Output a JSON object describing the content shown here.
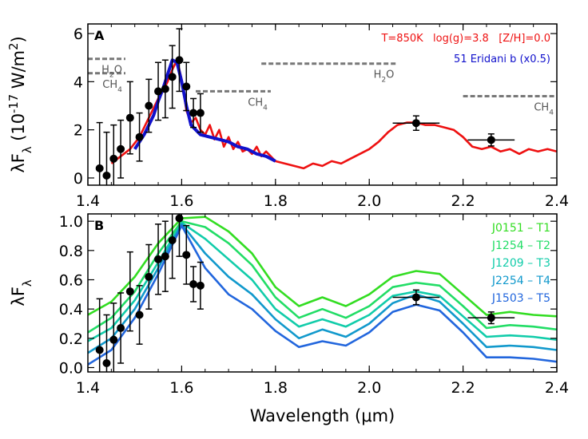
{
  "chart_data": [
    {
      "panel": "A",
      "type": "line",
      "xlabel": "",
      "ylabel": "λF_λ (10^-17 W/m^2)",
      "xlim": [
        1.4,
        2.4
      ],
      "ylim": [
        -0.3,
        6.4
      ],
      "xticks": [
        1.4,
        1.6,
        1.8,
        2.0,
        2.2,
        2.4
      ],
      "yticks": [
        0,
        2,
        4,
        6
      ],
      "xtick_labels": [
        "1.4",
        "1.6",
        "1.8",
        "2.0",
        "2.2",
        "2.4"
      ],
      "ytick_labels": [
        "0",
        "2",
        "4",
        "6"
      ],
      "annotation_model": "T=850K   log(g)=3.8   [Z/H]=0.0",
      "annotation_target": "51 Eridani b (x0.5)",
      "series": [
        {
          "name": "T=850K   log(g)=3.8   [Z/H]=0.0",
          "color": "#ee1111",
          "x": [
            1.45,
            1.47,
            1.49,
            1.51,
            1.53,
            1.55,
            1.56,
            1.57,
            1.58,
            1.59,
            1.6,
            1.61,
            1.62,
            1.63,
            1.64,
            1.65,
            1.66,
            1.67,
            1.68,
            1.69,
            1.7,
            1.71,
            1.72,
            1.73,
            1.74,
            1.75,
            1.76,
            1.77,
            1.78,
            1.8,
            1.82,
            1.84,
            1.86,
            1.88,
            1.9,
            1.92,
            1.94,
            1.96,
            1.98,
            2.0,
            2.02,
            2.04,
            2.06,
            2.08,
            2.1,
            2.12,
            2.14,
            2.16,
            2.18,
            2.2,
            2.22,
            2.24,
            2.26,
            2.28,
            2.3,
            2.32,
            2.34,
            2.36,
            2.38,
            2.4
          ],
          "y": [
            0.6,
            0.9,
            1.2,
            1.7,
            2.5,
            3.3,
            3.6,
            4.0,
            4.5,
            4.9,
            4.1,
            2.8,
            2.3,
            2.5,
            2.0,
            1.8,
            2.2,
            1.6,
            2.0,
            1.3,
            1.7,
            1.2,
            1.5,
            1.1,
            1.2,
            1.0,
            1.3,
            0.9,
            1.1,
            0.7,
            0.6,
            0.5,
            0.4,
            0.6,
            0.5,
            0.7,
            0.6,
            0.8,
            1.0,
            1.2,
            1.5,
            1.9,
            2.2,
            2.3,
            2.3,
            2.2,
            2.2,
            2.1,
            2.0,
            1.7,
            1.3,
            1.2,
            1.3,
            1.1,
            1.2,
            1.0,
            1.2,
            1.1,
            1.2,
            1.1
          ]
        },
        {
          "name": "51 Eridani b (x0.5)",
          "color": "#1111cc",
          "x": [
            1.5,
            1.52,
            1.54,
            1.55,
            1.56,
            1.57,
            1.58,
            1.59,
            1.6,
            1.61,
            1.62,
            1.63,
            1.64,
            1.66,
            1.68,
            1.7,
            1.72,
            1.74,
            1.76,
            1.78,
            1.8
          ],
          "y": [
            1.2,
            1.8,
            2.6,
            3.2,
            3.7,
            4.3,
            4.9,
            4.8,
            4.0,
            3.0,
            2.2,
            2.0,
            1.8,
            1.7,
            1.6,
            1.5,
            1.3,
            1.2,
            1.0,
            0.9,
            0.7
          ]
        },
        {
          "name": "data",
          "type": "scatter",
          "color": "#000000",
          "x": [
            1.425,
            1.44,
            1.455,
            1.47,
            1.49,
            1.51,
            1.53,
            1.55,
            1.565,
            1.58,
            1.595,
            1.61,
            1.625,
            1.64
          ],
          "y": [
            0.4,
            0.1,
            0.8,
            1.2,
            2.5,
            1.7,
            3.0,
            3.6,
            3.7,
            4.2,
            4.9,
            3.8,
            2.7,
            2.7
          ],
          "err": [
            1.9,
            1.8,
            1.4,
            1.2,
            1.5,
            1.0,
            1.1,
            1.2,
            1.2,
            1.3,
            1.3,
            1.0,
            0.6,
            0.8
          ]
        },
        {
          "name": "photometry",
          "type": "scatter",
          "color": "#000000",
          "x": [
            2.1,
            2.26
          ],
          "y": [
            2.28,
            1.58
          ],
          "xerr": [
            0.05,
            0.05
          ],
          "err": [
            0.3,
            0.25
          ]
        }
      ],
      "molecule_labels": [
        {
          "text": "H2O",
          "x": 1.5,
          "y": 4.95,
          "bar": [
            1.4,
            1.48
          ]
        },
        {
          "text": "CH4",
          "x": 1.5,
          "y": 4.35,
          "bar": [
            1.4,
            1.48
          ]
        },
        {
          "text": "H2O",
          "x": 2.0,
          "y": 4.75,
          "bar": [
            1.77,
            2.06
          ]
        },
        {
          "text": "CH4",
          "x": 1.89,
          "y": 3.6,
          "bar": [
            1.63,
            1.79
          ]
        },
        {
          "text": "CH4",
          "x": 2.35,
          "y": 3.4,
          "bar": [
            2.2,
            2.4
          ]
        }
      ]
    },
    {
      "panel": "B",
      "type": "line",
      "xlabel": "Wavelength (μm)",
      "ylabel": "λF_λ",
      "xlim": [
        1.4,
        2.4
      ],
      "ylim": [
        -0.03,
        1.05
      ],
      "xticks": [
        1.4,
        1.6,
        1.8,
        2.0,
        2.2,
        2.4
      ],
      "yticks": [
        0.0,
        0.2,
        0.4,
        0.6,
        0.8,
        1.0
      ],
      "xtick_labels": [
        "1.4",
        "1.6",
        "1.8",
        "2.0",
        "2.2",
        "2.4"
      ],
      "ytick_labels": [
        "0.0",
        "0.2",
        "0.4",
        "0.6",
        "0.8",
        "1.0"
      ],
      "series": [
        {
          "name": "J0151 – T1",
          "color": "#33dd22",
          "x": [
            1.4,
            1.45,
            1.5,
            1.55,
            1.6,
            1.65,
            1.7,
            1.75,
            1.8,
            1.85,
            1.9,
            1.95,
            2.0,
            2.05,
            2.1,
            2.15,
            2.2,
            2.25,
            2.3,
            2.35,
            2.4
          ],
          "y": [
            0.36,
            0.45,
            0.62,
            0.85,
            1.02,
            1.03,
            0.93,
            0.78,
            0.55,
            0.42,
            0.48,
            0.42,
            0.5,
            0.62,
            0.66,
            0.64,
            0.5,
            0.36,
            0.38,
            0.36,
            0.35
          ]
        },
        {
          "name": "J1254 – T2",
          "color": "#22dd66",
          "x": [
            1.4,
            1.45,
            1.5,
            1.55,
            1.6,
            1.65,
            1.7,
            1.75,
            1.8,
            1.85,
            1.9,
            1.95,
            2.0,
            2.05,
            2.1,
            2.15,
            2.2,
            2.25,
            2.3,
            2.35,
            2.4
          ],
          "y": [
            0.24,
            0.34,
            0.52,
            0.78,
            1.0,
            0.96,
            0.85,
            0.7,
            0.48,
            0.34,
            0.4,
            0.34,
            0.42,
            0.55,
            0.58,
            0.56,
            0.42,
            0.27,
            0.29,
            0.28,
            0.26
          ]
        },
        {
          "name": "J1209 – T3",
          "color": "#11ccaa",
          "x": [
            1.4,
            1.45,
            1.5,
            1.55,
            1.6,
            1.65,
            1.7,
            1.75,
            1.8,
            1.85,
            1.9,
            1.95,
            2.0,
            2.05,
            2.1,
            2.15,
            2.2,
            2.25,
            2.3,
            2.35,
            2.4
          ],
          "y": [
            0.18,
            0.27,
            0.46,
            0.72,
            0.99,
            0.88,
            0.74,
            0.6,
            0.4,
            0.28,
            0.33,
            0.28,
            0.36,
            0.49,
            0.52,
            0.49,
            0.35,
            0.21,
            0.22,
            0.21,
            0.19
          ]
        },
        {
          "name": "J2254 – T4",
          "color": "#1199cc",
          "x": [
            1.4,
            1.45,
            1.5,
            1.55,
            1.6,
            1.65,
            1.7,
            1.75,
            1.8,
            1.85,
            1.9,
            1.95,
            2.0,
            2.05,
            2.1,
            2.15,
            2.2,
            2.25,
            2.3,
            2.35,
            2.4
          ],
          "y": [
            0.1,
            0.2,
            0.4,
            0.68,
            0.98,
            0.78,
            0.62,
            0.5,
            0.33,
            0.2,
            0.26,
            0.21,
            0.3,
            0.44,
            0.5,
            0.45,
            0.3,
            0.14,
            0.15,
            0.14,
            0.12
          ]
        },
        {
          "name": "J1503 – T5",
          "color": "#2266dd",
          "x": [
            1.4,
            1.45,
            1.5,
            1.55,
            1.6,
            1.65,
            1.7,
            1.75,
            1.8,
            1.85,
            1.9,
            1.95,
            2.0,
            2.05,
            2.1,
            2.15,
            2.2,
            2.25,
            2.3,
            2.35,
            2.4
          ],
          "y": [
            0.02,
            0.12,
            0.34,
            0.64,
            0.97,
            0.68,
            0.5,
            0.4,
            0.25,
            0.14,
            0.18,
            0.15,
            0.24,
            0.38,
            0.43,
            0.39,
            0.24,
            0.07,
            0.07,
            0.06,
            0.04
          ]
        },
        {
          "name": "data",
          "type": "scatter",
          "color": "#000000",
          "x": [
            1.425,
            1.44,
            1.455,
            1.47,
            1.49,
            1.51,
            1.53,
            1.55,
            1.565,
            1.58,
            1.595,
            1.61,
            1.625,
            1.64
          ],
          "y": [
            0.12,
            0.03,
            0.19,
            0.27,
            0.52,
            0.36,
            0.62,
            0.74,
            0.76,
            0.87,
            1.02,
            0.77,
            0.57,
            0.56
          ],
          "err": [
            0.35,
            0.33,
            0.25,
            0.24,
            0.27,
            0.2,
            0.22,
            0.24,
            0.24,
            0.26,
            0.26,
            0.2,
            0.12,
            0.16
          ]
        },
        {
          "name": "photometry",
          "type": "scatter",
          "color": "#000000",
          "x": [
            2.1,
            2.26
          ],
          "y": [
            0.48,
            0.34
          ],
          "xerr": [
            0.05,
            0.05
          ],
          "err": [
            0.05,
            0.04
          ]
        }
      ],
      "legend": [
        {
          "text": "J0151 – T1",
          "color": "#33dd22"
        },
        {
          "text": "J1254 – T2",
          "color": "#22dd66"
        },
        {
          "text": "J1209 – T3",
          "color": "#11ccaa"
        },
        {
          "text": "J2254 – T4",
          "color": "#1199cc"
        },
        {
          "text": "J1503 – T5",
          "color": "#2266dd"
        }
      ]
    }
  ]
}
